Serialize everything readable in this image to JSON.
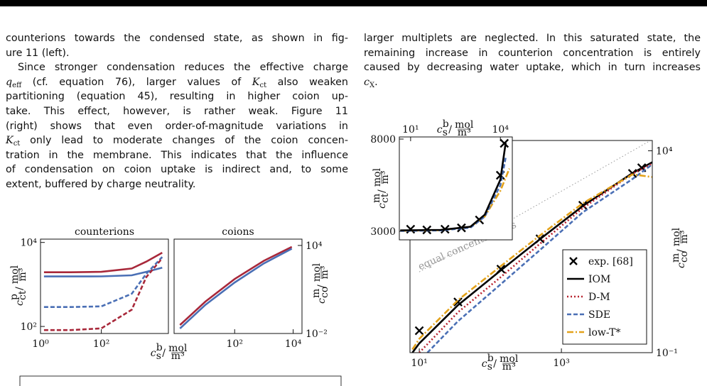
{
  "left_text": {
    "lines": [
      [
        "counterions towards the condensed state, as shown in fig-"
      ],
      [
        "ure 11 (left)."
      ],
      [
        "Since stronger condensation reduces the effective charge"
      ],
      [
        {
          "v": "q",
          "sub": "eff"
        },
        " (cf. equation 76), larger values of ",
        {
          "v": "K",
          "sub": "ct"
        },
        " also weaken"
      ],
      [
        "partitioning (equation 45), resulting in higher coion up-"
      ],
      [
        "take. This effect, however, is rather weak. Figure 11"
      ],
      [
        "(right) shows that even order-of-magnitude variations in"
      ],
      [
        {
          "v": "K",
          "sub": "ct"
        },
        " only lead to moderate changes of the coion concen-"
      ],
      [
        "tration in the membrane. This indicates that the influence"
      ],
      [
        "of condensation on coion uptake is indirect and, to some"
      ],
      [
        "extent, buffered by charge neutrality."
      ]
    ]
  },
  "right_text": {
    "lines": [
      [
        "larger multiplets are neglected. In this saturated state, the"
      ],
      [
        "remaining increase in counterion concentration is entirely"
      ],
      [
        "caused by decreasing water uptake, which in turn increases"
      ],
      [
        {
          "v": "c",
          "sub": "X"
        },
        "."
      ]
    ]
  },
  "chart_data": [
    {
      "type": "line",
      "title": "counterions",
      "xlog": true,
      "ylog": true,
      "xlim": [
        1,
        16000
      ],
      "ylim": [
        68,
        12000
      ],
      "xticks": [
        {
          "value": 1,
          "label": "10⁰"
        },
        {
          "value": 100,
          "label": "10²"
        }
      ],
      "yticks": [
        {
          "value": 100,
          "label": "10²"
        },
        {
          "value": 10000,
          "label": "10⁴"
        }
      ],
      "xaxis_side": "bottom",
      "yaxis_side": "left",
      "xlabel": {
        "var": "c",
        "sub": "s",
        "sup": "b",
        "sep": "/",
        "unit_num": "mol",
        "unit_den": "m³"
      },
      "ylabel": {
        "var": "c",
        "sub": "ct",
        "sup": "p",
        "sep": "/",
        "unit_num": "mol",
        "unit_den": "m³"
      },
      "x": [
        1.3,
        10,
        100,
        1000,
        3000,
        10000
      ],
      "series": [
        {
          "color": "#a8283a",
          "line_style": "solid",
          "values": [
            1950,
            1950,
            2000,
            2400,
            3500,
            5700
          ]
        },
        {
          "color": "#4a6fb5",
          "line_style": "solid",
          "values": [
            1550,
            1550,
            1560,
            1650,
            2000,
            2500
          ]
        },
        {
          "color": "#4a6fb5",
          "line_style": "dashed",
          "values": [
            290,
            290,
            300,
            600,
            1800,
            4500
          ]
        },
        {
          "color": "#a8283a",
          "line_style": "dashed",
          "values": [
            82,
            82,
            90,
            250,
            1500,
            4200
          ]
        }
      ]
    },
    {
      "type": "line",
      "title": "coions",
      "xlog": true,
      "ylog": true,
      "xlim": [
        0.85,
        20000
      ],
      "ylim": [
        0.01,
        27000
      ],
      "xticks": [
        {
          "value": 100,
          "label": "10²"
        },
        {
          "value": 10000,
          "label": "10⁴"
        }
      ],
      "yticks": [
        {
          "value": 0.01,
          "label": "10⁻²"
        },
        {
          "value": 10000,
          "label": "10⁴"
        }
      ],
      "xaxis_side": "bottom",
      "yaxis_side": "right",
      "ylabel": {
        "var": "c",
        "sub": "co",
        "sup": "m",
        "sep": "/",
        "unit_num": "mol",
        "unit_den": "m³"
      },
      "x": [
        1.35,
        10,
        100,
        1000,
        9000
      ],
      "series": [
        {
          "color": "#a8283a",
          "line_style": "solid",
          "values": [
            0.038,
            1.5,
            52,
            900,
            8000
          ]
        },
        {
          "color": "#4a6fb5",
          "line_style": "solid",
          "values": [
            0.022,
            0.9,
            30,
            600,
            6000
          ]
        }
      ]
    },
    {
      "type": "line",
      "xlog": true,
      "ylog": true,
      "xlim": [
        7.4,
        19000
      ],
      "ylim": [
        0.1,
        18000
      ],
      "xticks": [
        {
          "value": 10,
          "label": "10¹"
        },
        {
          "value": 1000,
          "label": "10³"
        }
      ],
      "yticks": [
        {
          "value": 0.1,
          "label": "10⁻¹"
        },
        {
          "value": 10000,
          "label": "10⁴"
        }
      ],
      "xaxis_side": "bottom",
      "yaxis_side": "right",
      "legend": "lower right",
      "xlabel": {
        "var": "c",
        "sub": "s",
        "sup": "b",
        "sep": "/",
        "unit_num": "mol",
        "unit_den": "m³"
      },
      "ylabel": {
        "var": "c",
        "sub": "co",
        "sup": "m",
        "sep": "/",
        "unit_num": "mol",
        "unit_den": "m³"
      },
      "reference_line": {
        "label": "equal concentrations",
        "color": "#999999",
        "x": [
          10,
          19000
        ],
        "y": [
          10,
          19000
        ]
      },
      "series": [
        {
          "name": "exp. [68]",
          "color": "#000000",
          "marker": "x",
          "x": [
            10,
            35,
            141,
            500,
            2000,
            10000,
            13500
          ],
          "values": [
            0.35,
            1.8,
            11.7,
            66,
            447,
            2750,
            3800
          ]
        },
        {
          "name": "IOM",
          "color": "#000000",
          "line_style": "solid",
          "x": [
            8,
            10,
            35,
            141,
            500,
            2000,
            10000,
            19000
          ],
          "values": [
            0.1,
            0.17,
            1.5,
            11,
            65,
            430,
            2800,
            5200
          ]
        },
        {
          "name": "D-M",
          "color": "#b8232f",
          "line_style": "dotted",
          "x": [
            10,
            35,
            141,
            500,
            2000,
            10000,
            19000
          ],
          "values": [
            0.1,
            1,
            7.5,
            50,
            380,
            2700,
            4800
          ]
        },
        {
          "name": "SDE",
          "color": "#4a6fb5",
          "line_style": "dashed",
          "x": [
            13,
            35,
            141,
            500,
            2000,
            10000,
            19000
          ],
          "values": [
            0.1,
            0.6,
            5,
            35,
            300,
            2000,
            4600
          ]
        },
        {
          "name": "low-T*",
          "color": "#e3a21a",
          "line_style": "dashdot",
          "x": [
            8,
            10,
            35,
            141,
            500,
            2000,
            10000,
            19000
          ],
          "values": [
            0.12,
            0.22,
            2,
            14,
            80,
            500,
            2600,
            2240
          ]
        }
      ]
    },
    {
      "type": "line",
      "xlog": true,
      "ylog": false,
      "xlim": [
        4.2,
        25000
      ],
      "ylim": [
        2540,
        8115
      ],
      "xticks": [
        {
          "value": 10,
          "label": "10¹"
        },
        {
          "value": 10000,
          "label": "10⁴"
        }
      ],
      "yticks": [
        3000,
        8000
      ],
      "xaxis_side": "top",
      "yaxis_side": "left",
      "xlabel": {
        "var": "c",
        "sub": "s",
        "sup": "b",
        "sep": "/",
        "unit_num": "mol",
        "unit_den": "m³"
      },
      "ylabel": {
        "var": "c",
        "sub": "ct",
        "sup": "m",
        "sep": "/",
        "unit_num": "mol",
        "unit_den": "m³"
      },
      "series": [
        {
          "color": "#000000",
          "marker": "x",
          "x": [
            10,
            35,
            141,
            500,
            2000,
            10000,
            13500
          ],
          "values": [
            3115,
            3077,
            3115,
            3190,
            3615,
            6040,
            7770
          ]
        },
        {
          "color": "#e3a21a",
          "line_style": "dashdot",
          "x": [
            4.5,
            100,
            1000,
            3000,
            10000,
            20000
          ],
          "values": [
            3030,
            3060,
            3250,
            3800,
            5200,
            6400
          ]
        },
        {
          "color": "#4a6fb5",
          "line_style": "dashed",
          "x": [
            4.5,
            100,
            1000,
            3000,
            10000,
            15000
          ],
          "values": [
            3020,
            3050,
            3200,
            3800,
            5500,
            7000
          ]
        },
        {
          "color": "#000000",
          "line_style": "solid",
          "x": [
            4.5,
            100,
            1000,
            3000,
            10000,
            15000
          ],
          "values": [
            3050,
            3080,
            3250,
            3900,
            5800,
            7800
          ]
        }
      ]
    }
  ]
}
